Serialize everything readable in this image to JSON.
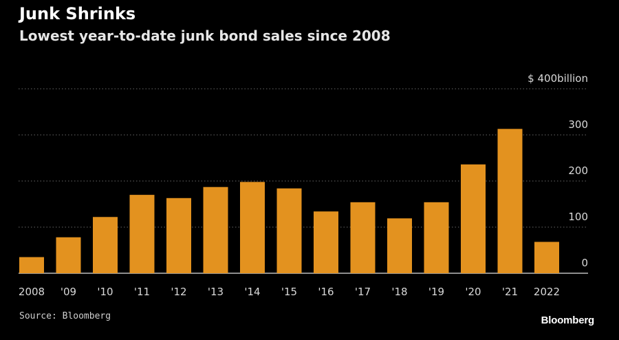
{
  "chart_data": {
    "type": "bar",
    "title": "Junk Shrinks",
    "subtitle": "Lowest year-to-date junk bond sales since 2008",
    "categories": [
      "2008",
      "'09",
      "'10",
      "'11",
      "'12",
      "'13",
      "'14",
      "'15",
      "'16",
      "'17",
      "'18",
      "'19",
      "'20",
      "'21",
      "2022"
    ],
    "values": [
      35,
      78,
      122,
      170,
      163,
      187,
      198,
      184,
      134,
      154,
      119,
      154,
      236,
      313,
      68
    ],
    "ylim": [
      0,
      400
    ],
    "yticks": [
      0,
      100,
      200,
      300,
      400
    ],
    "ytick_labels": [
      "0",
      "100",
      "200",
      "300",
      "$ 400billion"
    ],
    "grid": true,
    "bar_color": "#e3921f",
    "source": "Source: Bloomberg",
    "brand": "Bloomberg"
  }
}
